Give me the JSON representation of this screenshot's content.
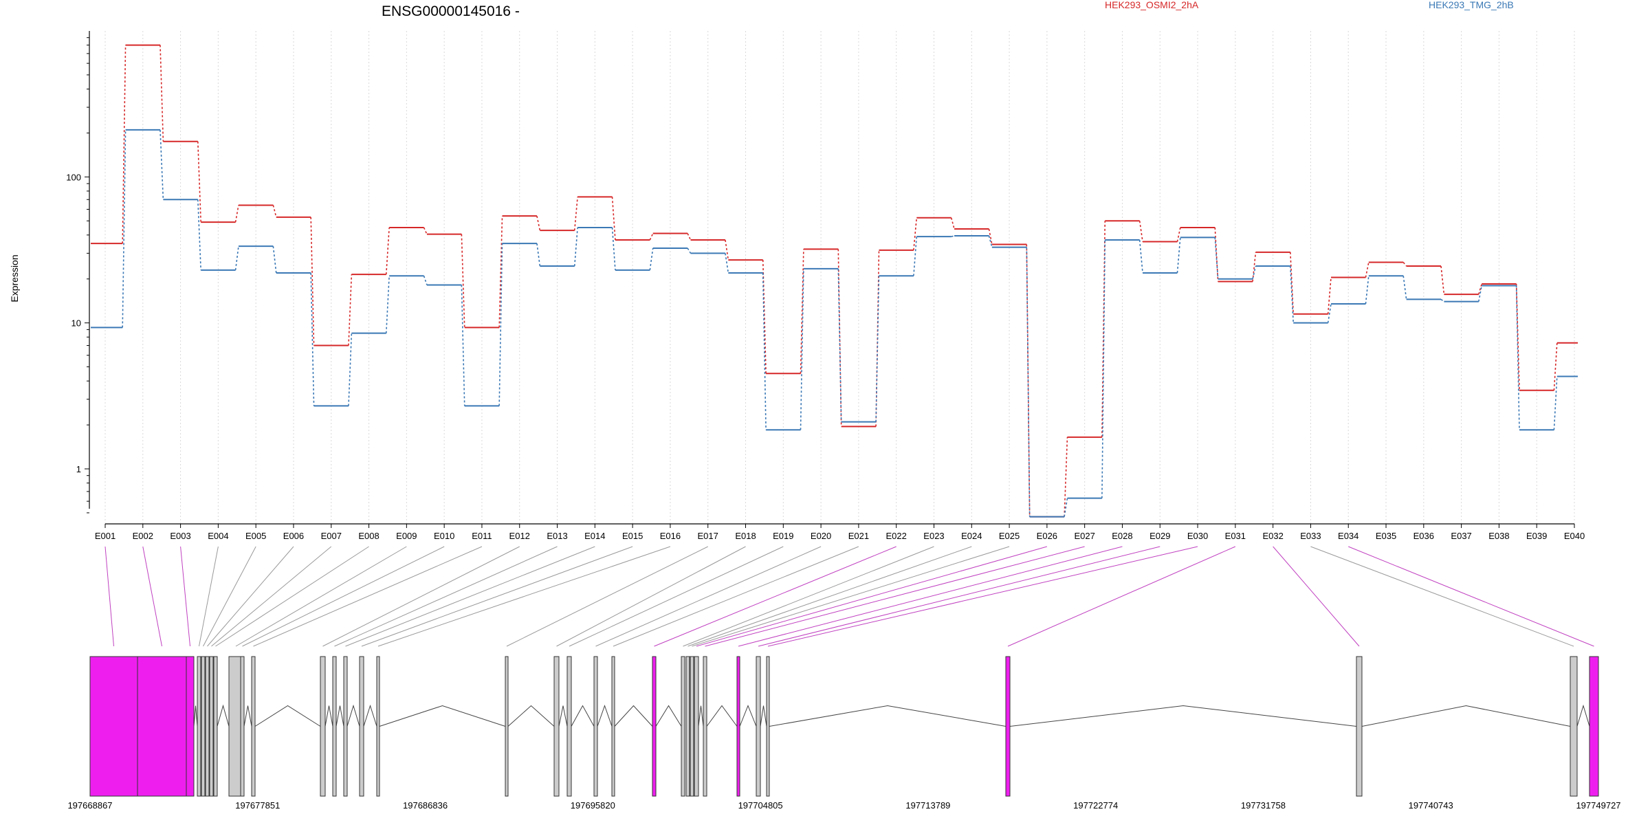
{
  "chart_data": {
    "type": "line",
    "title": "ENSG00000145016 -",
    "ylabel": "Expression",
    "xlabel": "",
    "y_scale": "log",
    "y_ticks": [
      1,
      10,
      100
    ],
    "y_tick_labels": [
      "1",
      "10",
      "100"
    ],
    "ylim": [
      0.42,
      1000
    ],
    "grid": "vertical dotted lines at each exon",
    "legend": "top-right",
    "categories": [
      "E001",
      "E002",
      "E003",
      "E004",
      "E005",
      "E006",
      "E007",
      "E008",
      "E009",
      "E010",
      "E011",
      "E012",
      "E013",
      "E014",
      "E015",
      "E016",
      "E017",
      "E018",
      "E019",
      "E020",
      "E021",
      "E022",
      "E023",
      "E024",
      "E025",
      "E026",
      "E027",
      "E028",
      "E029",
      "E030",
      "E031",
      "E032",
      "E033",
      "E034",
      "E035",
      "E036",
      "E037",
      "E038",
      "E039",
      "E040"
    ],
    "series": [
      {
        "name": "HEK293_OSMI2_2hA",
        "color": "#d62728",
        "values": [
          35,
          800,
          175,
          49,
          64,
          53,
          7,
          21.5,
          45,
          40.5,
          9.3,
          54,
          43,
          73,
          37,
          41,
          37,
          27,
          4.5,
          32,
          1.95,
          31.5,
          52.5,
          44,
          34.5,
          0.47,
          1.65,
          50,
          36,
          45,
          19.2,
          30.5,
          11.5,
          20.5,
          26,
          24.5,
          15.7,
          18.5,
          3.45,
          7.3
        ]
      },
      {
        "name": "HEK293_TMG_2hB",
        "color": "#3a78b5",
        "values": [
          9.3,
          210,
          70,
          23,
          33.5,
          22,
          2.7,
          8.5,
          21,
          18.2,
          2.7,
          35,
          24.5,
          45,
          23,
          32.5,
          30,
          22,
          1.85,
          23.5,
          2.1,
          21,
          39,
          39.5,
          33,
          0.47,
          0.63,
          37,
          22,
          38.5,
          20,
          24.5,
          10,
          13.5,
          21,
          14.5,
          14,
          18,
          1.85,
          4.3
        ]
      }
    ],
    "gene_track": {
      "coordinate_labels": [
        "197668867",
        "197677851",
        "197686836",
        "197695820",
        "197704805",
        "197713789",
        "197722774",
        "197731758",
        "197740743",
        "197749727"
      ],
      "exon_tested_color": "#ee1fee",
      "exon_untested_color": "#cccccc",
      "exon_highlight_flags": [
        1,
        1,
        1,
        0,
        0,
        0,
        0,
        0,
        0,
        0,
        0,
        0,
        0,
        0,
        0,
        0,
        0,
        0,
        0,
        0,
        0,
        0,
        0,
        0,
        0,
        0,
        0,
        0,
        0,
        0,
        0,
        0,
        0,
        0,
        0,
        0,
        0,
        0,
        0,
        0
      ]
    }
  }
}
